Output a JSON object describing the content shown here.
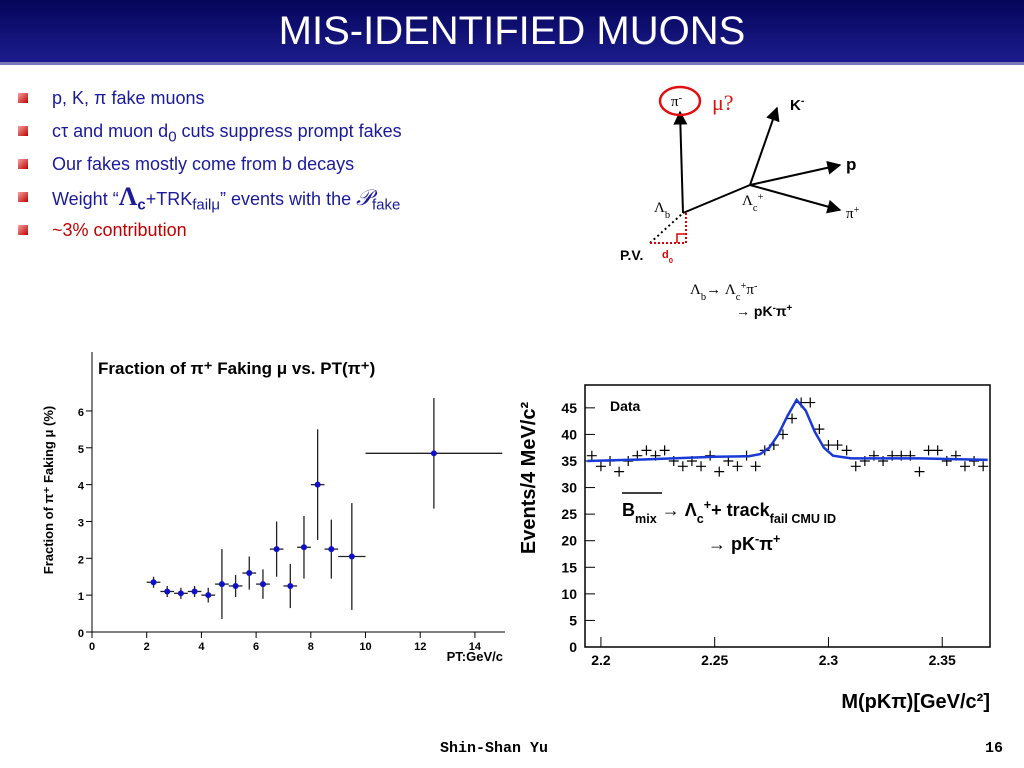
{
  "header": {
    "title": "MIS-IDENTIFIED MUONS"
  },
  "bullets": [
    [
      {
        "t": "p, K, π fake muons"
      }
    ],
    [
      {
        "t": "cτ and muon d"
      },
      {
        "t": "0",
        "s": "sub"
      },
      {
        "t": " cuts suppress prompt fakes"
      }
    ],
    [
      {
        "t": "Our fakes mostly come from b decays"
      }
    ],
    [
      {
        "t": "Weight “"
      },
      {
        "t": "Λ",
        "s": "big"
      },
      {
        "t": "c",
        "s": "subb"
      },
      {
        "t": "+TRK"
      },
      {
        "t": "failμ",
        "s": "sub"
      },
      {
        "t": "” events with the "
      },
      {
        "t": "𝒫",
        "s": "it"
      },
      {
        "t": "fake",
        "s": "sub"
      }
    ],
    [
      {
        "t": "~3% contribution",
        "s": "red"
      }
    ]
  ],
  "diagram": {
    "pi_minus": [
      {
        "t": "π"
      },
      {
        "t": "-",
        "s": "sup"
      }
    ],
    "mu": [
      {
        "t": "μ?"
      }
    ],
    "k_minus": [
      {
        "t": "K"
      },
      {
        "t": "-",
        "s": "sup"
      }
    ],
    "proton": [
      {
        "t": "p"
      }
    ],
    "pi_plus": [
      {
        "t": "π"
      },
      {
        "t": "+",
        "s": "sup"
      }
    ],
    "lambda_c": [
      {
        "t": "Λ"
      },
      {
        "t": "c",
        "s": "sub"
      },
      {
        "t": "+",
        "s": "sup"
      }
    ],
    "lambda_b": [
      {
        "t": "Λ"
      },
      {
        "t": "b",
        "s": "sub"
      }
    ],
    "pv": [
      {
        "t": "P.V."
      }
    ],
    "d0": [
      {
        "t": "d"
      },
      {
        "t": "0",
        "s": "sub"
      }
    ],
    "decay1": [
      {
        "t": "Λ"
      },
      {
        "t": "b",
        "s": "sub"
      },
      {
        "t": "→ Λ"
      },
      {
        "t": "c",
        "s": "sub"
      },
      {
        "t": "+",
        "s": "sup"
      },
      {
        "t": "π"
      },
      {
        "t": "-",
        "s": "sup"
      }
    ],
    "decay2": [
      {
        "t": "→ pK"
      },
      {
        "t": "-",
        "s": "sup"
      },
      {
        "t": "π"
      },
      {
        "t": "+",
        "s": "sup"
      }
    ]
  },
  "chart_data": [
    {
      "type": "scatter",
      "title": "Fraction of π⁺ Faking μ vs. PT(π⁺)",
      "x_label": "PT:GeV/c",
      "y_label": "Fraction of π⁺ Faking μ (%)",
      "xlim": [
        0,
        15.1
      ],
      "ylim": [
        0,
        7.6
      ],
      "xticks": [
        0,
        2,
        4,
        6,
        8,
        10,
        12,
        14
      ],
      "yticks": [
        0,
        1,
        2,
        3,
        4,
        5,
        6
      ],
      "color": "#1010c8",
      "x": [
        2.25,
        2.75,
        3.25,
        3.75,
        4.25,
        4.75,
        5.25,
        5.75,
        6.25,
        6.75,
        7.25,
        7.75,
        8.25,
        8.75,
        9.5,
        12.5
      ],
      "values": [
        1.35,
        1.1,
        1.05,
        1.1,
        1.0,
        1.3,
        1.25,
        1.6,
        1.3,
        2.25,
        1.25,
        2.3,
        4.0,
        2.25,
        2.05,
        4.85
      ],
      "xerr": [
        0.25,
        0.25,
        0.25,
        0.25,
        0.25,
        0.25,
        0.25,
        0.25,
        0.25,
        0.25,
        0.25,
        0.25,
        0.25,
        0.25,
        0.5,
        2.5
      ],
      "yerr": [
        0.15,
        0.15,
        0.15,
        0.15,
        0.2,
        0.95,
        0.3,
        0.45,
        0.4,
        0.75,
        0.6,
        0.85,
        1.5,
        0.8,
        1.45,
        1.5
      ]
    },
    {
      "type": "line",
      "x_label": "M(pKπ)[GeV/c²]",
      "y_label": "Events/4 MeV/c²",
      "annotation1": [
        {
          "t": "B"
        },
        {
          "t": "mix",
          "s": "sub"
        },
        {
          "t": " → Λ"
        },
        {
          "t": "c",
          "s": "sub"
        },
        {
          "t": "+",
          "s": "sup"
        },
        {
          "t": "+ track"
        },
        {
          "t": "fail CMU ID",
          "s": "sub"
        }
      ],
      "annotation2": [
        {
          "t": "→ pK"
        },
        {
          "t": "-",
          "s": "sup"
        },
        {
          "t": "π"
        },
        {
          "t": "+",
          "s": "sup"
        }
      ],
      "xlim": [
        2.193,
        2.371
      ],
      "ylim": [
        0,
        49.3
      ],
      "xticks": [
        2.2,
        2.25,
        2.3,
        2.35
      ],
      "yticks": [
        0,
        5,
        10,
        15,
        20,
        25,
        30,
        35,
        40,
        45
      ],
      "series": [
        {
          "name": "Data",
          "marker": "+",
          "color": "#000000",
          "x": [
            2.196,
            2.2,
            2.204,
            2.208,
            2.212,
            2.216,
            2.22,
            2.224,
            2.228,
            2.232,
            2.236,
            2.24,
            2.244,
            2.248,
            2.252,
            2.256,
            2.26,
            2.264,
            2.268,
            2.272,
            2.276,
            2.28,
            2.284,
            2.288,
            2.292,
            2.296,
            2.3,
            2.304,
            2.308,
            2.312,
            2.316,
            2.32,
            2.324,
            2.328,
            2.332,
            2.336,
            2.34,
            2.344,
            2.348,
            2.352,
            2.356,
            2.36,
            2.364,
            2.368
          ],
          "values": [
            36,
            34,
            35,
            33,
            35,
            36,
            37,
            36,
            37,
            35,
            34,
            35,
            34,
            36,
            33,
            35,
            34,
            36,
            34,
            37,
            38,
            40,
            43,
            46,
            46,
            41,
            38,
            38,
            37,
            34,
            35,
            36,
            35,
            36,
            36,
            36,
            33,
            37,
            37,
            35,
            36,
            34,
            35,
            34
          ]
        },
        {
          "marker": "line",
          "color": "#1a3ad8",
          "x": [
            2.194,
            2.22,
            2.25,
            2.265,
            2.27,
            2.274,
            2.278,
            2.282,
            2.286,
            2.29,
            2.294,
            2.298,
            2.302,
            2.31,
            2.34,
            2.37
          ],
          "values": [
            35.0,
            35.3,
            35.8,
            35.9,
            36.3,
            37.5,
            40.0,
            43.5,
            46.5,
            44.5,
            40.5,
            37.5,
            36.0,
            35.5,
            35.5,
            35.2
          ]
        }
      ]
    }
  ],
  "footer": {
    "author": "Shin-Shan Yu",
    "page": "16"
  }
}
